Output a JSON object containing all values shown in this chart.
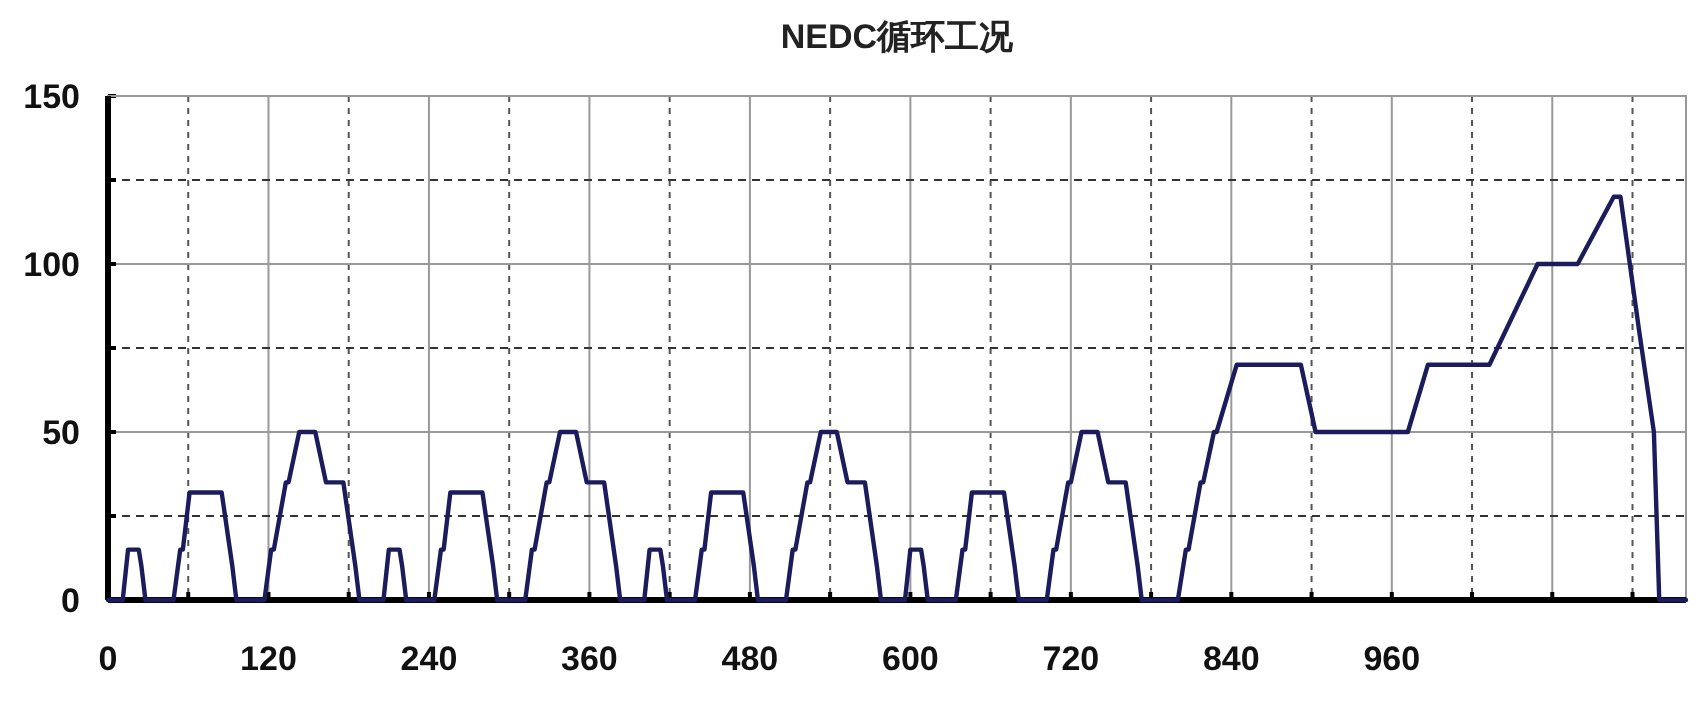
{
  "chart_data": {
    "type": "line",
    "title": "NEDC循环工况",
    "x": [
      0,
      11,
      15,
      23,
      25,
      28,
      49,
      54,
      56,
      61,
      85,
      93,
      96,
      117,
      122,
      124,
      133,
      135,
      143,
      155,
      163,
      176,
      185,
      188,
      195,
      206,
      210,
      218,
      220,
      223,
      244,
      249,
      251,
      256,
      280,
      288,
      291,
      312,
      317,
      319,
      328,
      330,
      338,
      350,
      358,
      371,
      380,
      383,
      390,
      401,
      405,
      413,
      415,
      418,
      439,
      444,
      446,
      451,
      475,
      483,
      486,
      507,
      512,
      514,
      523,
      525,
      533,
      545,
      553,
      566,
      575,
      578,
      585,
      596,
      600,
      608,
      610,
      613,
      634,
      639,
      641,
      646,
      670,
      678,
      681,
      702,
      707,
      709,
      718,
      720,
      728,
      740,
      748,
      761,
      770,
      773,
      780,
      800,
      806,
      808,
      817,
      819,
      827,
      829,
      844,
      892,
      903,
      972,
      987,
      1033,
      1069,
      1099,
      1126,
      1131,
      1145,
      1156,
      1160,
      1180
    ],
    "series": [
      {
        "color": "#1c1c5c",
        "values": [
          0,
          0,
          15,
          15,
          10,
          0,
          0,
          15,
          15,
          32,
          32,
          10,
          0,
          0,
          15,
          15,
          35,
          35,
          50,
          50,
          35,
          35,
          10,
          0,
          0,
          0,
          15,
          15,
          10,
          0,
          0,
          15,
          15,
          32,
          32,
          10,
          0,
          0,
          15,
          15,
          35,
          35,
          50,
          50,
          35,
          35,
          10,
          0,
          0,
          0,
          15,
          15,
          10,
          0,
          0,
          15,
          15,
          32,
          32,
          10,
          0,
          0,
          15,
          15,
          35,
          35,
          50,
          50,
          35,
          35,
          10,
          0,
          0,
          0,
          15,
          15,
          10,
          0,
          0,
          15,
          15,
          32,
          32,
          10,
          0,
          0,
          15,
          15,
          35,
          35,
          50,
          50,
          35,
          35,
          10,
          0,
          0,
          0,
          15,
          15,
          35,
          35,
          50,
          50,
          70,
          70,
          50,
          50,
          70,
          70,
          100,
          100,
          120,
          120,
          80,
          50,
          0,
          0
        ]
      }
    ],
    "xlim": [
      0,
      1180
    ],
    "xticks": [
      0,
      {
        "value": 60,
        "label": null
      },
      120,
      {
        "value": 180,
        "label": null
      },
      240,
      {
        "value": 300,
        "label": null
      },
      360,
      {
        "value": 420,
        "label": null
      },
      480,
      {
        "value": 540,
        "label": null
      },
      600,
      {
        "value": 660,
        "label": null
      },
      720,
      {
        "value": 780,
        "label": null
      },
      840,
      {
        "value": 900,
        "label": null
      },
      960,
      {
        "value": 1020,
        "label": null
      },
      {
        "value": 1080,
        "label": null
      },
      {
        "value": 1140,
        "label": null
      }
    ],
    "ylim": [
      0,
      150
    ],
    "yticks": [
      0,
      {
        "value": 25,
        "label": null
      },
      50,
      {
        "value": 75,
        "label": null
      },
      100,
      {
        "value": 125,
        "label": null
      },
      150
    ],
    "grid": true
  }
}
